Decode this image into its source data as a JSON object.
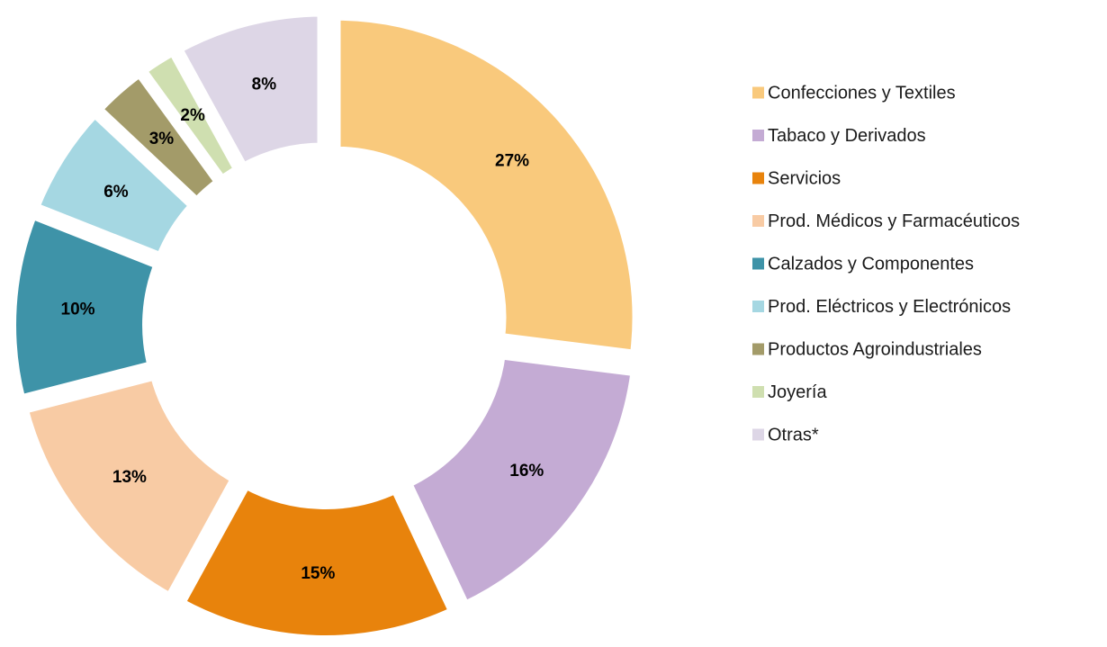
{
  "chart_data": {
    "type": "donut",
    "categories": [
      "Confecciones y Textiles",
      "Tabaco y Derivados",
      "Servicios",
      "Prod. Médicos y Farmacéuticos",
      "Calzados y Componentes",
      "Prod. Eléctricos y Electrónicos",
      "Productos Agroindustriales",
      "Joyería",
      "Otras*"
    ],
    "values": [
      27,
      16,
      15,
      13,
      10,
      6,
      3,
      2,
      8
    ],
    "value_labels": [
      "27%",
      "16%",
      "15%",
      "13%",
      "10%",
      "6%",
      "3%",
      "2%",
      "8%"
    ],
    "colors": [
      "#F9C97C",
      "#C4ABD4",
      "#E8830C",
      "#F8CBA4",
      "#3E93A8",
      "#A5D7E2",
      "#A39B69",
      "#CFDFB0",
      "#DDD6E6"
    ],
    "legend": "right"
  }
}
